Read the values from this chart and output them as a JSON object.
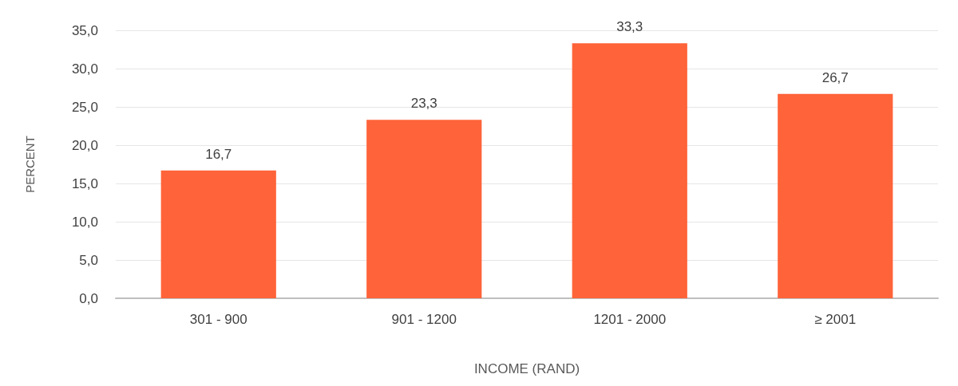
{
  "chart_data": {
    "type": "bar",
    "xlabel": "INCOME (RAND)",
    "ylabel": "PERCENT",
    "categories": [
      "301 - 900",
      "901 - 1200",
      "1201 - 2000",
      "≥ 2001"
    ],
    "values": [
      16.7,
      23.3,
      33.3,
      26.7
    ],
    "value_labels": [
      "16,7",
      "23,3",
      "33,3",
      "26,7"
    ],
    "color": "#ff6339",
    "ylim": [
      0,
      35
    ],
    "yticks": [
      {
        "value": 0,
        "label": "0,0"
      },
      {
        "value": 5,
        "label": "5,0"
      },
      {
        "value": 10,
        "label": "10,0"
      },
      {
        "value": 15,
        "label": "15,0"
      },
      {
        "value": 20,
        "label": "20,0"
      },
      {
        "value": 25,
        "label": "25,0"
      },
      {
        "value": 30,
        "label": "30,0"
      },
      {
        "value": 35,
        "label": "35,0"
      }
    ],
    "grid": "y"
  }
}
